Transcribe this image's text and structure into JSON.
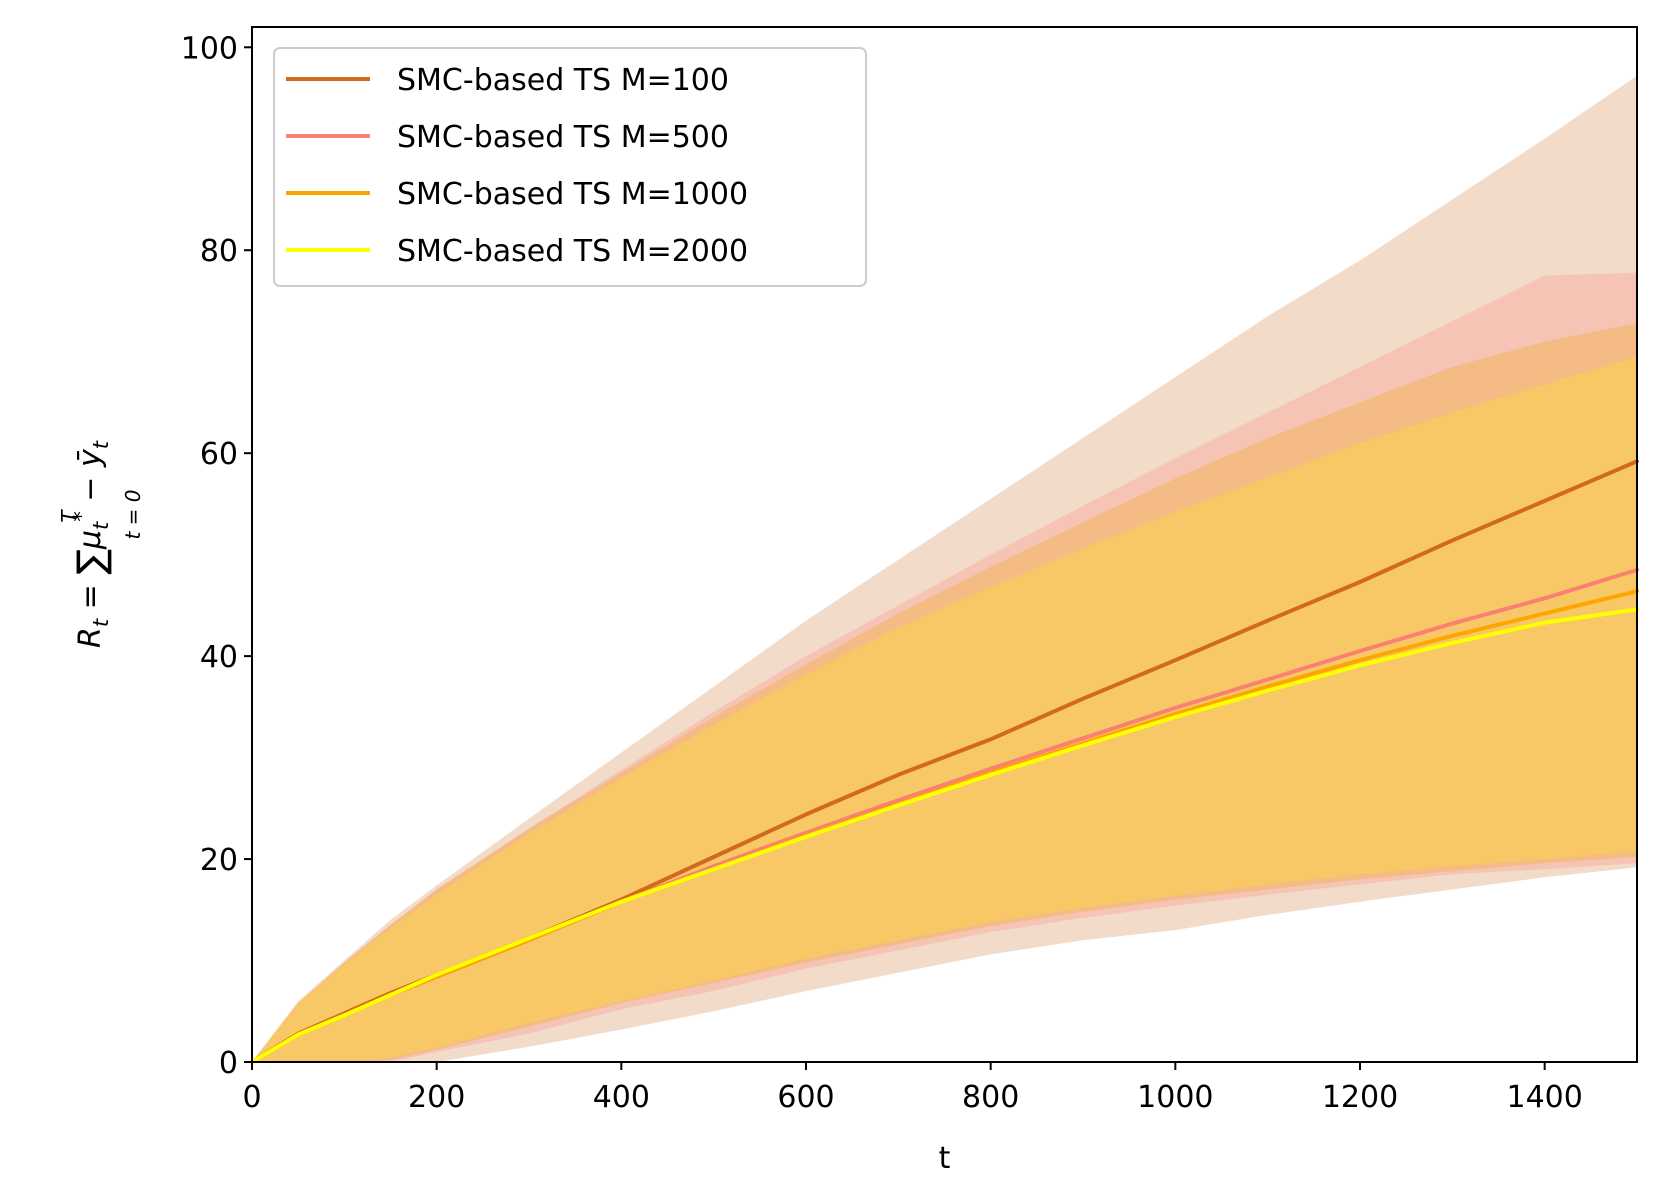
{
  "chart_data": {
    "type": "line",
    "title": "",
    "xlabel": "t",
    "ylabel": {
      "lhs": "R",
      "lhs_sub": "t",
      "eq": " = ",
      "sum_upper": "T",
      "sum_lower": "t = 0",
      "mu": "μ",
      "mu_sub": "t",
      "mu_sup": "*",
      "minus": " − ",
      "y": "ȳ",
      "y_sub": "t"
    },
    "xlim": [
      0,
      1500
    ],
    "ylim": [
      0,
      102
    ],
    "xticks": [
      0,
      200,
      400,
      600,
      800,
      1000,
      1200,
      1400
    ],
    "yticks": [
      0,
      20,
      40,
      60,
      80,
      100
    ],
    "legend_position": "top-left",
    "x": [
      0,
      50,
      100,
      150,
      200,
      300,
      400,
      500,
      600,
      700,
      800,
      900,
      1000,
      1100,
      1200,
      1300,
      1400,
      1500
    ],
    "series": [
      {
        "name": "SMC-based TS M=100",
        "color": "#d2691e",
        "band_color": "#f2d7c4",
        "mean": [
          0,
          2.8,
          4.8,
          6.8,
          8.6,
          12.2,
          16.0,
          20.2,
          24.4,
          28.3,
          31.8,
          35.8,
          39.6,
          43.5,
          47.3,
          51.4,
          55.3,
          59.2
        ],
        "upper": [
          0,
          6.0,
          10.0,
          14.0,
          17.4,
          24.0,
          30.5,
          37.0,
          43.5,
          49.5,
          55.5,
          61.5,
          67.5,
          73.5,
          79.0,
          85.0,
          91.0,
          97.2
        ],
        "lower": [
          0,
          0,
          0,
          0,
          0,
          1.5,
          3.2,
          5.0,
          7.0,
          8.8,
          10.6,
          12.0,
          13.0,
          14.5,
          15.8,
          17.0,
          18.2,
          19.2
        ]
      },
      {
        "name": "SMC-based TS M=500",
        "color": "#fa8072",
        "band_color": "#f5c0b2",
        "mean": [
          0,
          2.7,
          4.6,
          6.6,
          8.4,
          12.0,
          15.8,
          19.3,
          22.6,
          25.8,
          28.9,
          31.9,
          34.9,
          37.7,
          40.5,
          43.2,
          45.7,
          48.5
        ],
        "upper": [
          0,
          5.8,
          9.8,
          13.5,
          17.0,
          23.0,
          28.8,
          34.5,
          40.0,
          45.0,
          50.0,
          54.8,
          59.5,
          64.0,
          68.5,
          73.0,
          77.5,
          77.8
        ],
        "lower": [
          0,
          0,
          0,
          0,
          1.0,
          2.8,
          5.2,
          7.0,
          9.2,
          11.0,
          12.8,
          14.2,
          15.4,
          16.5,
          17.5,
          18.5,
          19.0,
          19.6
        ]
      },
      {
        "name": "SMC-based TS M=1000",
        "color": "#ffa500",
        "band_color": "#f5b978",
        "mean": [
          0,
          2.7,
          4.6,
          6.6,
          8.4,
          12.0,
          15.8,
          19.0,
          22.3,
          25.4,
          28.5,
          31.4,
          34.3,
          37.0,
          39.6,
          42.0,
          44.2,
          46.4
        ],
        "upper": [
          0,
          5.8,
          9.8,
          13.5,
          17.0,
          23.0,
          28.5,
          34.0,
          39.2,
          44.2,
          48.8,
          53.2,
          57.5,
          61.5,
          65.0,
          68.5,
          71.0,
          72.8
        ],
        "lower": [
          0,
          0,
          0,
          0.2,
          1.2,
          3.5,
          5.8,
          7.8,
          9.8,
          11.6,
          13.4,
          14.8,
          16.0,
          17.0,
          18.0,
          18.8,
          19.6,
          20.2
        ]
      },
      {
        "name": "SMC-based TS M=2000",
        "color": "#ffff00",
        "band_color": "#f7ca62",
        "mean": [
          0,
          2.7,
          4.6,
          6.6,
          8.6,
          12.2,
          15.8,
          19.0,
          22.2,
          25.3,
          28.3,
          31.2,
          34.0,
          36.6,
          39.1,
          41.3,
          43.3,
          44.6
        ],
        "upper": [
          0,
          5.8,
          9.6,
          13.2,
          16.5,
          22.5,
          28.0,
          33.2,
          38.2,
          42.8,
          46.8,
          50.6,
          54.2,
          57.6,
          61.0,
          64.0,
          66.8,
          69.5
        ],
        "lower": [
          0,
          0,
          0,
          0.4,
          1.4,
          3.8,
          6.0,
          8.0,
          10.2,
          12.0,
          13.8,
          15.2,
          16.4,
          17.5,
          18.5,
          19.3,
          20.0,
          20.8
        ]
      }
    ]
  }
}
